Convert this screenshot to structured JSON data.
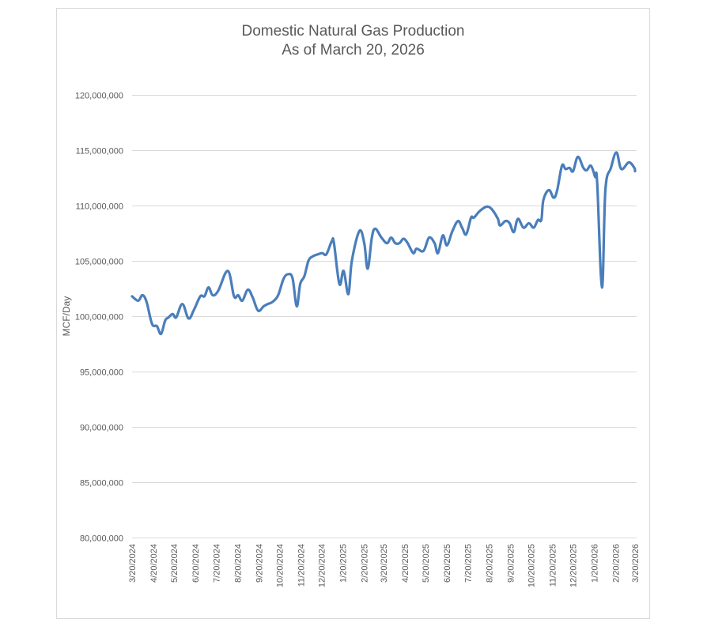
{
  "chart_data": {
    "type": "line",
    "title": "Domestic Natural Gas Production",
    "subtitle": "As of March 20, 2026",
    "xlabel": "",
    "ylabel": "MCF/Day",
    "ylim": [
      80000000,
      120000000
    ],
    "yticks": [
      80000000,
      85000000,
      90000000,
      95000000,
      100000000,
      105000000,
      110000000,
      115000000,
      120000000
    ],
    "ytick_labels": [
      "80,000,000",
      "85,000,000",
      "90,000,000",
      "95,000,000",
      "100,000,000",
      "105,000,000",
      "110,000,000",
      "115,000,000",
      "120,000,000"
    ],
    "xlim": [
      "2024-03-20",
      "2026-03-20"
    ],
    "xtick_labels": [
      "3/20/2024",
      "4/20/2024",
      "5/20/2024",
      "6/20/2024",
      "7/20/2024",
      "8/20/2024",
      "9/20/2024",
      "10/20/2024",
      "11/20/2024",
      "12/20/2024",
      "1/20/2025",
      "2/20/2025",
      "3/20/2025",
      "4/20/2025",
      "5/20/2025",
      "6/20/2025",
      "7/20/2025",
      "8/20/2025",
      "9/20/2025",
      "10/20/2025",
      "11/20/2025",
      "12/20/2025",
      "1/20/2026",
      "2/20/2026",
      "3/20/2026"
    ],
    "xtick_dates": [
      "2024-03-20",
      "2024-04-20",
      "2024-05-20",
      "2024-06-20",
      "2024-07-20",
      "2024-08-20",
      "2024-09-20",
      "2024-10-20",
      "2024-11-20",
      "2024-12-20",
      "2025-01-20",
      "2025-02-20",
      "2025-03-20",
      "2025-04-20",
      "2025-05-20",
      "2025-06-20",
      "2025-07-20",
      "2025-08-20",
      "2025-09-20",
      "2025-10-20",
      "2025-11-20",
      "2025-12-20",
      "2026-01-20",
      "2026-02-20",
      "2026-03-20"
    ],
    "grid": true,
    "legend": "none",
    "series": [
      {
        "name": "MCF/Day",
        "color": "#4a7ebb",
        "points": [
          [
            "2024-03-20",
            101800000
          ],
          [
            "2024-03-29",
            101400000
          ],
          [
            "2024-04-04",
            101900000
          ],
          [
            "2024-04-10",
            101300000
          ],
          [
            "2024-04-18",
            99300000
          ],
          [
            "2024-04-25",
            99100000
          ],
          [
            "2024-05-01",
            98400000
          ],
          [
            "2024-05-07",
            99600000
          ],
          [
            "2024-05-12",
            99900000
          ],
          [
            "2024-05-18",
            100200000
          ],
          [
            "2024-05-23",
            99900000
          ],
          [
            "2024-06-01",
            101100000
          ],
          [
            "2024-06-10",
            99800000
          ],
          [
            "2024-06-18",
            100600000
          ],
          [
            "2024-06-27",
            101800000
          ],
          [
            "2024-07-03",
            101800000
          ],
          [
            "2024-07-09",
            102600000
          ],
          [
            "2024-07-15",
            101900000
          ],
          [
            "2024-07-23",
            102300000
          ],
          [
            "2024-08-06",
            104100000
          ],
          [
            "2024-08-15",
            101800000
          ],
          [
            "2024-08-21",
            101900000
          ],
          [
            "2024-08-27",
            101400000
          ],
          [
            "2024-09-04",
            102400000
          ],
          [
            "2024-09-11",
            101700000
          ],
          [
            "2024-09-19",
            100500000
          ],
          [
            "2024-09-27",
            100900000
          ],
          [
            "2024-10-03",
            101100000
          ],
          [
            "2024-10-10",
            101300000
          ],
          [
            "2024-10-18",
            101900000
          ],
          [
            "2024-10-26",
            103400000
          ],
          [
            "2024-11-02",
            103800000
          ],
          [
            "2024-11-08",
            103400000
          ],
          [
            "2024-11-14",
            100900000
          ],
          [
            "2024-11-19",
            102900000
          ],
          [
            "2024-11-25",
            103600000
          ],
          [
            "2024-12-01",
            105000000
          ],
          [
            "2024-12-07",
            105400000
          ],
          [
            "2024-12-15",
            105600000
          ],
          [
            "2024-12-21",
            105700000
          ],
          [
            "2024-12-27",
            105600000
          ],
          [
            "2025-01-04",
            106800000
          ],
          [
            "2025-01-07",
            106600000
          ],
          [
            "2025-01-15",
            102900000
          ],
          [
            "2025-01-21",
            104100000
          ],
          [
            "2025-01-28",
            102000000
          ],
          [
            "2025-02-02",
            105000000
          ],
          [
            "2025-02-13",
            107700000
          ],
          [
            "2025-02-20",
            106600000
          ],
          [
            "2025-02-25",
            104300000
          ],
          [
            "2025-03-03",
            107100000
          ],
          [
            "2025-03-08",
            107900000
          ],
          [
            "2025-03-17",
            107100000
          ],
          [
            "2025-03-25",
            106600000
          ],
          [
            "2025-03-31",
            107100000
          ],
          [
            "2025-04-06",
            106600000
          ],
          [
            "2025-04-12",
            106600000
          ],
          [
            "2025-04-18",
            107000000
          ],
          [
            "2025-04-24",
            106600000
          ],
          [
            "2025-05-02",
            105700000
          ],
          [
            "2025-05-07",
            106100000
          ],
          [
            "2025-05-17",
            105900000
          ],
          [
            "2025-05-25",
            107100000
          ],
          [
            "2025-06-02",
            106600000
          ],
          [
            "2025-06-07",
            105700000
          ],
          [
            "2025-06-14",
            107300000
          ],
          [
            "2025-06-20",
            106400000
          ],
          [
            "2025-06-28",
            107700000
          ],
          [
            "2025-07-06",
            108600000
          ],
          [
            "2025-07-12",
            108000000
          ],
          [
            "2025-07-18",
            107400000
          ],
          [
            "2025-07-25",
            108900000
          ],
          [
            "2025-07-29",
            108900000
          ],
          [
            "2025-08-05",
            109400000
          ],
          [
            "2025-08-13",
            109800000
          ],
          [
            "2025-08-19",
            109900000
          ],
          [
            "2025-08-25",
            109600000
          ],
          [
            "2025-09-02",
            108800000
          ],
          [
            "2025-09-05",
            108200000
          ],
          [
            "2025-09-13",
            108600000
          ],
          [
            "2025-09-19",
            108400000
          ],
          [
            "2025-09-25",
            107600000
          ],
          [
            "2025-10-01",
            108800000
          ],
          [
            "2025-10-09",
            108000000
          ],
          [
            "2025-10-17",
            108400000
          ],
          [
            "2025-10-24",
            108000000
          ],
          [
            "2025-10-30",
            108700000
          ],
          [
            "2025-11-04",
            108700000
          ],
          [
            "2025-11-07",
            110500000
          ],
          [
            "2025-11-15",
            111400000
          ],
          [
            "2025-11-22",
            110700000
          ],
          [
            "2025-11-27",
            111400000
          ],
          [
            "2025-12-04",
            113600000
          ],
          [
            "2025-12-09",
            113300000
          ],
          [
            "2025-12-15",
            113400000
          ],
          [
            "2025-12-20",
            113100000
          ],
          [
            "2025-12-27",
            114400000
          ],
          [
            "2026-01-04",
            113400000
          ],
          [
            "2026-01-09",
            113200000
          ],
          [
            "2026-01-15",
            113600000
          ],
          [
            "2026-01-21",
            112600000
          ],
          [
            "2026-01-24",
            112100000
          ],
          [
            "2026-01-31",
            102600000
          ],
          [
            "2026-02-05",
            111400000
          ],
          [
            "2026-02-13",
            113400000
          ],
          [
            "2026-02-21",
            114800000
          ],
          [
            "2026-02-28",
            113300000
          ],
          [
            "2026-03-11",
            113900000
          ],
          [
            "2026-03-19",
            113400000
          ],
          [
            "2026-03-20",
            113100000
          ]
        ]
      }
    ]
  }
}
